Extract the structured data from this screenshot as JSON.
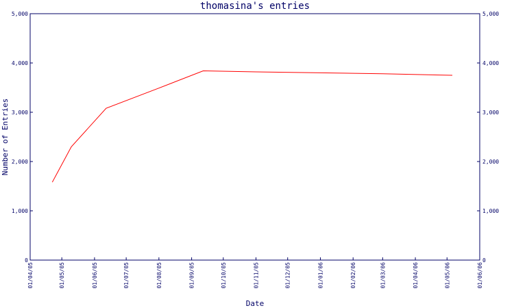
{
  "chart_data": {
    "type": "line",
    "title": "thomasina's entries",
    "xlabel": "Date",
    "ylabel": "Number of Entries",
    "ylim": [
      0,
      5000
    ],
    "xlim": [
      "2005-04-01",
      "2006-06-01"
    ],
    "y_ticks": [
      0,
      1000,
      2000,
      3000,
      4000,
      5000
    ],
    "y_tick_labels": [
      "0",
      "1,000",
      "2,000",
      "3,000",
      "4,000",
      "5,000"
    ],
    "x_ticks": [
      "2005-04-01",
      "2005-05-01",
      "2005-06-01",
      "2005-07-01",
      "2005-08-01",
      "2005-09-01",
      "2005-10-01",
      "2005-11-01",
      "2005-12-01",
      "2006-01-01",
      "2006-02-01",
      "2006-03-01",
      "2006-04-01",
      "2006-05-01",
      "2006-06-01"
    ],
    "x_tick_labels": [
      "01/04/05",
      "01/05/05",
      "01/06/05",
      "01/07/05",
      "01/08/05",
      "01/09/05",
      "01/10/05",
      "01/11/05",
      "01/12/05",
      "01/01/06",
      "01/02/06",
      "01/03/06",
      "01/04/06",
      "01/05/06",
      "01/06/06"
    ],
    "grid": false,
    "series": [
      {
        "color": "#ff0000",
        "x": [
          "2005-04-22",
          "2005-05-10",
          "2005-06-12",
          "2005-08-01",
          "2005-09-12",
          "2005-11-01",
          "2006-01-01",
          "2006-03-01",
          "2006-05-06"
        ],
        "y": [
          1580,
          2300,
          3080,
          3490,
          3840,
          3820,
          3800,
          3780,
          3750
        ]
      }
    ],
    "axis_color": "#000066"
  }
}
